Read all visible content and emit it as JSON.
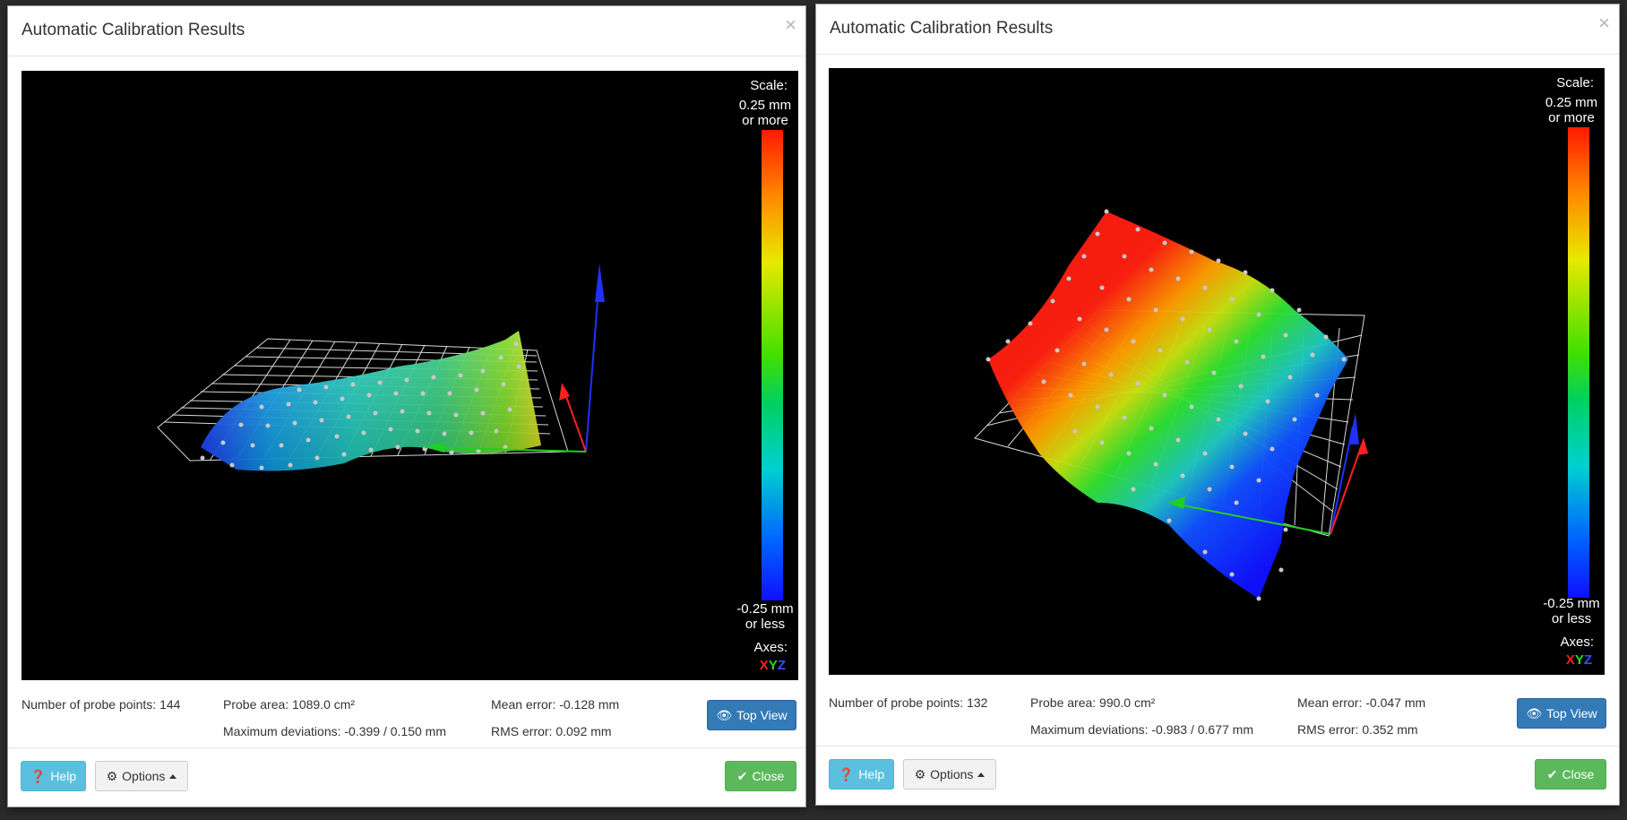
{
  "dialogs": [
    {
      "title": "Automatic Calibration Results",
      "close_symbol": "×",
      "scale": {
        "title": "Scale:",
        "max_label": "0.25 mm\nor more",
        "min_label": "-0.25 mm\nor less"
      },
      "axes": {
        "title": "Axes:",
        "x": "X",
        "y": "Y",
        "z": "Z"
      },
      "stats": {
        "probe_points": "Number of probe points: 144",
        "probe_area": "Probe area: 1089.0 cm²",
        "max_deviations": "Maximum deviations: -0.399 / 0.150 mm",
        "mean_error": "Mean error: -0.128 mm",
        "rms_error": "RMS error: 0.092 mm"
      },
      "buttons": {
        "top_view": "Top View",
        "help": "Help",
        "options": "Options",
        "close": "Close"
      }
    },
    {
      "title": "Automatic Calibration Results",
      "close_symbol": "×",
      "scale": {
        "title": "Scale:",
        "max_label": "0.25 mm\nor more",
        "min_label": "-0.25 mm\nor less"
      },
      "axes": {
        "title": "Axes:",
        "x": "X",
        "y": "Y",
        "z": "Z"
      },
      "stats": {
        "probe_points": "Number of probe points: 132",
        "probe_area": "Probe area: 990.0 cm²",
        "max_deviations": "Maximum deviations: -0.983 / 0.677 mm",
        "mean_error": "Mean error: -0.047 mm",
        "rms_error": "RMS error: 0.352 mm"
      },
      "buttons": {
        "top_view": "Top View",
        "help": "Help",
        "options": "Options",
        "close": "Close"
      }
    }
  ],
  "colors": {
    "primary": "#337ab7",
    "info": "#5bc0de",
    "success": "#5cb85c",
    "viewer_bg": "#000000"
  },
  "icons": {
    "top_view": "eye-icon",
    "help": "question-circle-icon",
    "options": "gear-icon",
    "close": "check-icon"
  }
}
